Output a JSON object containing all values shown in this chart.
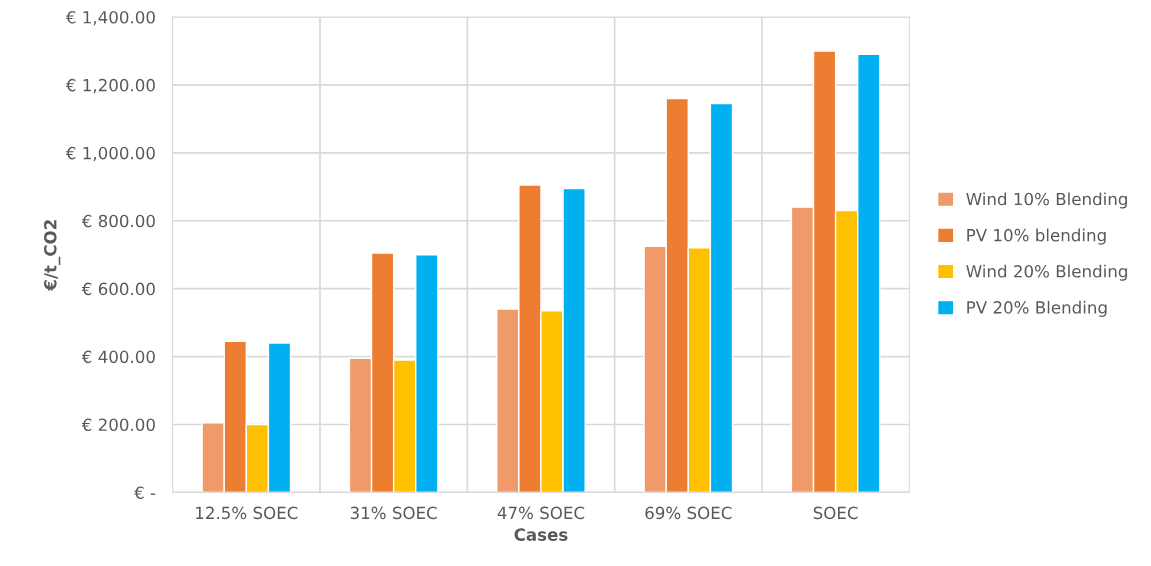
{
  "chart_data": {
    "type": "bar",
    "xlabel": "Cases",
    "ylabel": "€/t_CO2",
    "categories": [
      "12.5% SOEC",
      "31% SOEC",
      "47% SOEC",
      "69% SOEC",
      "SOEC"
    ],
    "series": [
      {
        "name": "Wind 10% Blending",
        "color": "#f09a6a",
        "values": [
          205,
          395,
          540,
          725,
          840
        ]
      },
      {
        "name": "PV 10% blending",
        "color": "#ed7d31",
        "values": [
          445,
          705,
          905,
          1160,
          1300
        ]
      },
      {
        "name": "Wind 20% Blending",
        "color": "#ffc000",
        "values": [
          200,
          390,
          535,
          720,
          830
        ]
      },
      {
        "name": "PV 20% Blending",
        "color": "#00b0f0",
        "values": [
          440,
          700,
          895,
          1145,
          1290
        ]
      }
    ],
    "ylim": [
      0,
      1400
    ],
    "yticks": [
      {
        "value": 0,
        "label": "€ -"
      },
      {
        "value": 200,
        "label": "€ 200.00"
      },
      {
        "value": 400,
        "label": "€ 400.00"
      },
      {
        "value": 600,
        "label": "€ 600.00"
      },
      {
        "value": 800,
        "label": "€ 800.00"
      },
      {
        "value": 1000,
        "label": "€ 1,000.00"
      },
      {
        "value": 1200,
        "label": "€ 1,200.00"
      },
      {
        "value": 1400,
        "label": "€ 1,400.00"
      }
    ],
    "grid": true,
    "legend": "right"
  }
}
